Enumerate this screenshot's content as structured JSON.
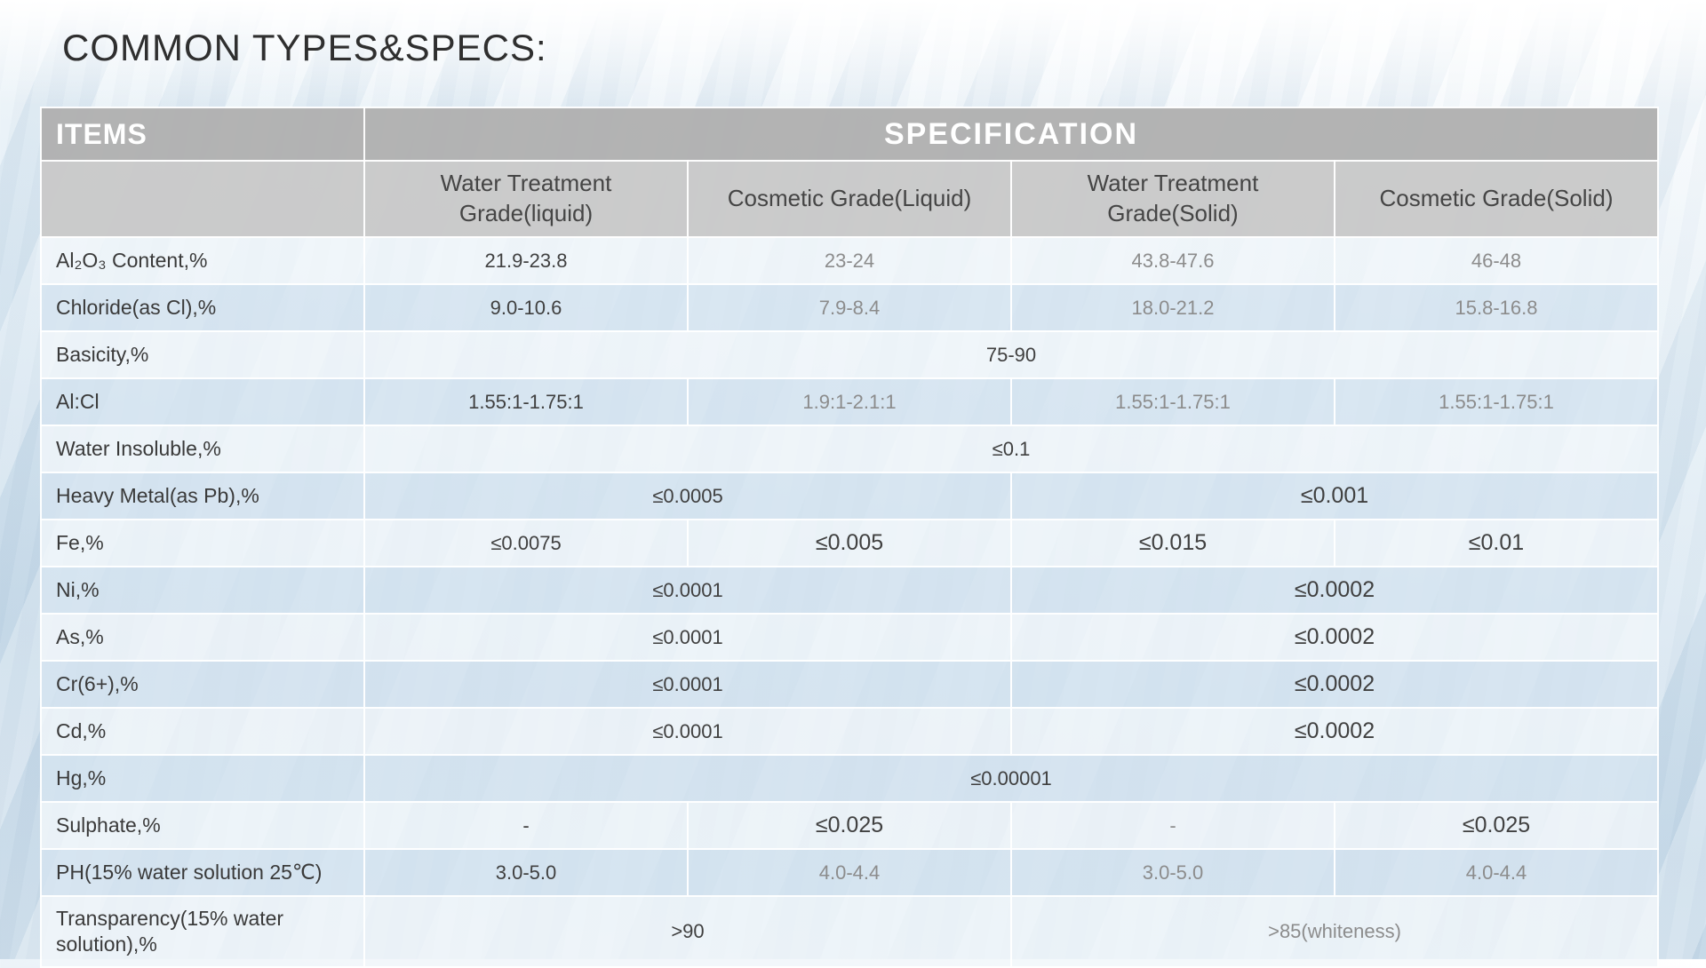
{
  "page": {
    "title": "COMMON TYPES&SPECS:"
  },
  "colors": {
    "header_bg": "#b0b0b0",
    "subheader_bg": "#c9c9c9",
    "header_text": "#ffffff",
    "row_light": "#f1f6fa",
    "row_dark": "#d5e4f0",
    "value_dark": "#404040",
    "value_gray": "#8c8c8c"
  },
  "table": {
    "items_header": "ITEMS",
    "spec_header": "SPECIFICATION",
    "columns": [
      "Water Treatment Grade(liquid)",
      "Cosmetic Grade(Liquid)",
      "Water Treatment Grade(Solid)",
      "Cosmetic Grade(Solid)"
    ],
    "rows": [
      {
        "item": "Al₂O₃ Content,%",
        "cells": [
          "21.9-23.8",
          "23-24",
          "43.8-47.6",
          "46-48"
        ]
      },
      {
        "item": "Chloride(as Cl),%",
        "cells": [
          "9.0-10.6",
          "7.9-8.4",
          "18.0-21.2",
          "15.8-16.8"
        ]
      },
      {
        "item": "Basicity,%",
        "cells": [
          "75-90"
        ]
      },
      {
        "item": "Al:Cl",
        "cells": [
          "1.55:1-1.75:1",
          "1.9:1-2.1:1",
          "1.55:1-1.75:1",
          "1.55:1-1.75:1"
        ]
      },
      {
        "item": "Water Insoluble,%",
        "cells": [
          "≤0.1"
        ]
      },
      {
        "item": "Heavy Metal(as Pb),%",
        "cells": [
          "≤0.0005",
          "≤0.001"
        ]
      },
      {
        "item": "Fe,%",
        "cells": [
          "≤0.0075",
          "≤0.005",
          "≤0.015",
          "≤0.01"
        ]
      },
      {
        "item": "Ni,%",
        "cells": [
          "≤0.0001",
          "≤0.0002"
        ]
      },
      {
        "item": "As,%",
        "cells": [
          "≤0.0001",
          "≤0.0002"
        ]
      },
      {
        "item": "Cr(6+),%",
        "cells": [
          "≤0.0001",
          "≤0.0002"
        ]
      },
      {
        "item": "Cd,%",
        "cells": [
          "≤0.0001",
          "≤0.0002"
        ]
      },
      {
        "item": "Hg,%",
        "cells": [
          "≤0.00001"
        ]
      },
      {
        "item": "Sulphate,%",
        "cells": [
          "-",
          "≤0.025",
          "-",
          "≤0.025"
        ]
      },
      {
        "item": "PH(15% water solution 25℃)",
        "cells": [
          "3.0-5.0",
          "4.0-4.4",
          "3.0-5.0",
          "4.0-4.4"
        ]
      },
      {
        "item": "Transparency(15% water solution),%",
        "cells": [
          ">90",
          ">85(whiteness)"
        ]
      }
    ]
  }
}
